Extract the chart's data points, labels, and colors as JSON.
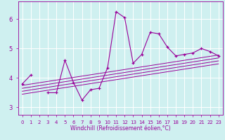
{
  "title": "",
  "xlabel": "Windchill (Refroidissement éolien,°C)",
  "bg_color": "#cff0f0",
  "line_color": "#990099",
  "grid_color": "#ffffff",
  "x_data": [
    0,
    1,
    2,
    3,
    4,
    5,
    6,
    7,
    8,
    9,
    10,
    11,
    12,
    13,
    14,
    15,
    16,
    17,
    18,
    19,
    20,
    21,
    22,
    23
  ],
  "y_main": [
    3.8,
    4.1,
    null,
    3.5,
    3.5,
    4.6,
    3.85,
    3.25,
    3.6,
    3.65,
    4.35,
    6.25,
    6.05,
    4.5,
    4.8,
    5.55,
    5.5,
    5.05,
    4.75,
    4.8,
    4.85,
    5.0,
    4.9,
    4.75
  ],
  "reg_lines": [
    {
      "x": [
        0,
        23
      ],
      "y": [
        3.75,
        4.78
      ]
    },
    {
      "x": [
        0,
        23
      ],
      "y": [
        3.65,
        4.68
      ]
    },
    {
      "x": [
        0,
        23
      ],
      "y": [
        3.55,
        4.58
      ]
    },
    {
      "x": [
        0,
        23
      ],
      "y": [
        3.45,
        4.48
      ]
    }
  ],
  "xlim": [
    -0.5,
    23.5
  ],
  "ylim": [
    2.75,
    6.6
  ],
  "yticks": [
    3,
    4,
    5,
    6
  ],
  "xticks": [
    0,
    1,
    2,
    3,
    4,
    5,
    6,
    7,
    8,
    9,
    10,
    11,
    12,
    13,
    14,
    15,
    16,
    17,
    18,
    19,
    20,
    21,
    22,
    23
  ]
}
